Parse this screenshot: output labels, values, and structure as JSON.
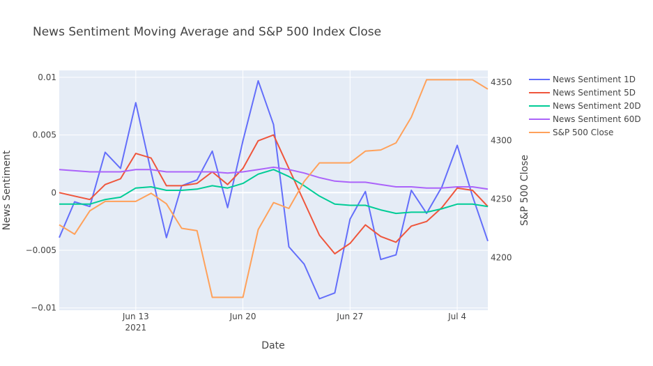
{
  "chart_data": {
    "type": "line",
    "title": "News Sentiment Moving Average and S&P 500 Index Close",
    "xlabel": "Date",
    "ylabel": "News Sentiment",
    "y2label": "S&P 500 Close",
    "legend_placement": "right",
    "grid": true,
    "xlim": [
      "2021-06-08",
      "2021-07-06"
    ],
    "ylim": [
      -0.0102,
      0.0106
    ],
    "y2lim": [
      4155,
      4360
    ],
    "x_ticks": [
      {
        "date": "2021-06-13",
        "label": "Jun 13",
        "sublabel": "2021"
      },
      {
        "date": "2021-06-20",
        "label": "Jun 20",
        "sublabel": ""
      },
      {
        "date": "2021-06-27",
        "label": "Jun 27",
        "sublabel": ""
      },
      {
        "date": "2021-07-04",
        "label": "Jul 4",
        "sublabel": ""
      }
    ],
    "y_ticks": [
      {
        "value": 0.01,
        "label": "0.01"
      },
      {
        "value": 0.005,
        "label": "0.005"
      },
      {
        "value": 0,
        "label": "0"
      },
      {
        "value": -0.005,
        "label": "−0.005"
      },
      {
        "value": -0.01,
        "label": "−0.01"
      }
    ],
    "y2_ticks": [
      {
        "value": 4200,
        "label": "4200"
      },
      {
        "value": 4250,
        "label": "4250"
      },
      {
        "value": 4300,
        "label": "4300"
      },
      {
        "value": 4350,
        "label": "4350"
      }
    ],
    "x": [
      "2021-06-08",
      "2021-06-09",
      "2021-06-10",
      "2021-06-11",
      "2021-06-12",
      "2021-06-13",
      "2021-06-14",
      "2021-06-15",
      "2021-06-16",
      "2021-06-17",
      "2021-06-18",
      "2021-06-19",
      "2021-06-20",
      "2021-06-21",
      "2021-06-22",
      "2021-06-23",
      "2021-06-24",
      "2021-06-25",
      "2021-06-26",
      "2021-06-27",
      "2021-06-28",
      "2021-06-29",
      "2021-06-30",
      "2021-07-01",
      "2021-07-02",
      "2021-07-03",
      "2021-07-04",
      "2021-07-05",
      "2021-07-06"
    ],
    "series": [
      {
        "name": "News Sentiment 1D",
        "axis": "y",
        "color": "#636efa",
        "values": [
          -0.0039,
          -0.0008,
          -0.0012,
          0.0035,
          0.0021,
          0.0078,
          0.0018,
          -0.0039,
          0.0006,
          0.0011,
          0.0036,
          -0.0013,
          0.0045,
          0.0097,
          0.0059,
          -0.0047,
          -0.0062,
          -0.0092,
          -0.0087,
          -0.0023,
          0.0001,
          -0.0058,
          -0.0054,
          0.0002,
          -0.0018,
          0.0005,
          0.0041,
          -0.0003,
          -0.0042
        ]
      },
      {
        "name": "News Sentiment 5D",
        "axis": "y",
        "color": "#ef553b",
        "values": [
          0.0,
          -0.0003,
          -0.0006,
          0.0007,
          0.0012,
          0.0034,
          0.003,
          0.0006,
          0.0006,
          0.0008,
          0.0018,
          0.0007,
          0.0021,
          0.0045,
          0.005,
          0.0021,
          -0.0008,
          -0.0037,
          -0.0053,
          -0.0044,
          -0.0028,
          -0.0038,
          -0.0043,
          -0.0029,
          -0.0025,
          -0.0013,
          0.0004,
          0.0002,
          -0.0012
        ]
      },
      {
        "name": "News Sentiment 20D",
        "axis": "y",
        "color": "#00cc96",
        "values": [
          -0.001,
          -0.001,
          -0.001,
          -0.0006,
          -0.0004,
          0.0004,
          0.0005,
          0.0002,
          0.0002,
          0.0003,
          0.0006,
          0.0004,
          0.0008,
          0.0016,
          0.002,
          0.0014,
          0.0006,
          -0.0003,
          -0.001,
          -0.0011,
          -0.0011,
          -0.0015,
          -0.0018,
          -0.0017,
          -0.0017,
          -0.0014,
          -0.001,
          -0.001,
          -0.0012
        ]
      },
      {
        "name": "News Sentiment 60D",
        "axis": "y",
        "color": "#ab63fa",
        "values": [
          0.002,
          0.0019,
          0.0018,
          0.0018,
          0.0018,
          0.002,
          0.002,
          0.0018,
          0.0018,
          0.0018,
          0.0018,
          0.0017,
          0.0018,
          0.002,
          0.0022,
          0.002,
          0.0017,
          0.0013,
          0.001,
          0.0009,
          0.0009,
          0.0007,
          0.0005,
          0.0005,
          0.0004,
          0.0004,
          0.0005,
          0.0005,
          0.0003
        ]
      },
      {
        "name": "S&P 500 Close",
        "axis": "y2",
        "color": "#ffa15a",
        "values": [
          4228,
          4220,
          4240,
          4248,
          4248,
          4248,
          4255,
          4246,
          4225,
          4223,
          4166,
          4166,
          4166,
          4224,
          4247,
          4242,
          4265,
          4281,
          4281,
          4281,
          4291,
          4292,
          4298,
          4320,
          4352,
          4352,
          4352,
          4352,
          4344
        ]
      }
    ]
  }
}
